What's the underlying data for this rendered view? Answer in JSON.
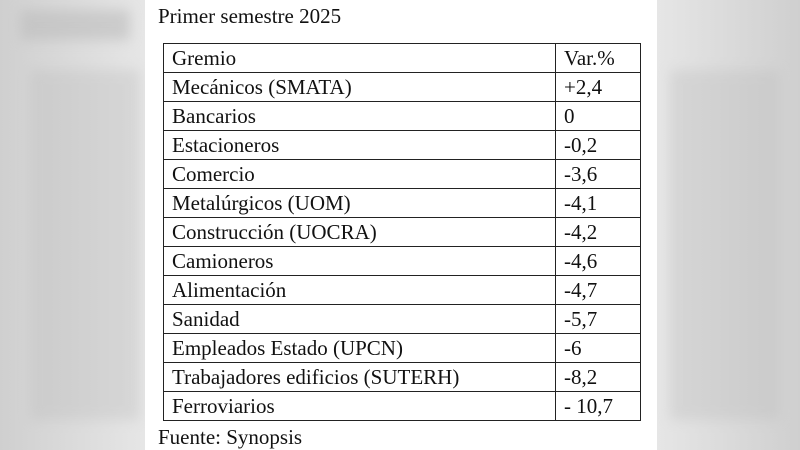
{
  "title": "Primer semestre 2025",
  "table": {
    "header": [
      "Gremio",
      "Var.%"
    ],
    "rows": [
      [
        "Mecánicos (SMATA)",
        "+2,4"
      ],
      [
        "Bancarios",
        "0"
      ],
      [
        "Estacioneros",
        "-0,2"
      ],
      [
        "Comercio",
        "-3,6"
      ],
      [
        "Metalúrgicos (UOM)",
        "-4,1"
      ],
      [
        "Construcción (UOCRA)",
        "-4,2"
      ],
      [
        "Camioneros",
        "-4,6"
      ],
      [
        "Alimentación",
        "-4,7"
      ],
      [
        "Sanidad",
        "-5,7"
      ],
      [
        "Empleados Estado (UPCN)",
        "-6"
      ],
      [
        "Trabajadores edificios (SUTERH)",
        "-8,2"
      ],
      [
        "Ferroviarios",
        "- 10,7"
      ]
    ]
  },
  "source": "Fuente: Synopsis"
}
